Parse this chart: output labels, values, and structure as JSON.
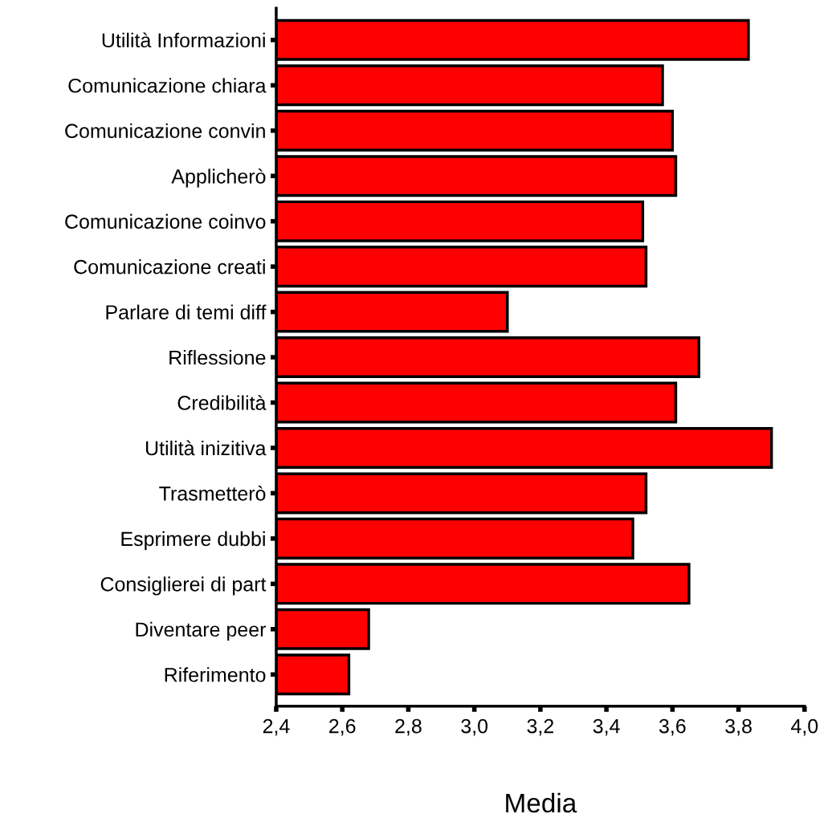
{
  "chart_data": {
    "type": "bar",
    "orientation": "horizontal",
    "xlabel": "Media",
    "categories": [
      "Utilità Informazioni",
      "Comunicazione chiara",
      "Comunicazione convin",
      "Applicherò",
      "Comunicazione coinvo",
      "Comunicazione creati",
      "Parlare di temi diff",
      "Riflessione",
      "Credibilità",
      "Utilità inizitiva",
      "Trasmetterò",
      "Esprimere dubbi",
      "Consiglierei di part",
      "Diventare peer",
      "Riferimento"
    ],
    "values": [
      3.83,
      3.57,
      3.6,
      3.61,
      3.51,
      3.52,
      3.1,
      3.68,
      3.61,
      3.9,
      3.52,
      3.48,
      3.65,
      2.68,
      2.62
    ],
    "color": "#ff0000",
    "xlim": [
      2.4,
      4.0
    ],
    "xticks": [
      {
        "value": 2.4,
        "label": "2,4"
      },
      {
        "value": 2.6,
        "label": "2,6"
      },
      {
        "value": 2.8,
        "label": "2,8"
      },
      {
        "value": 3.0,
        "label": "3,0"
      },
      {
        "value": 3.2,
        "label": "3,2"
      },
      {
        "value": 3.4,
        "label": "3,4"
      },
      {
        "value": 3.6,
        "label": "3,6"
      },
      {
        "value": 3.8,
        "label": "3,8"
      },
      {
        "value": 4.0,
        "label": "4,0"
      }
    ],
    "legend": false
  }
}
